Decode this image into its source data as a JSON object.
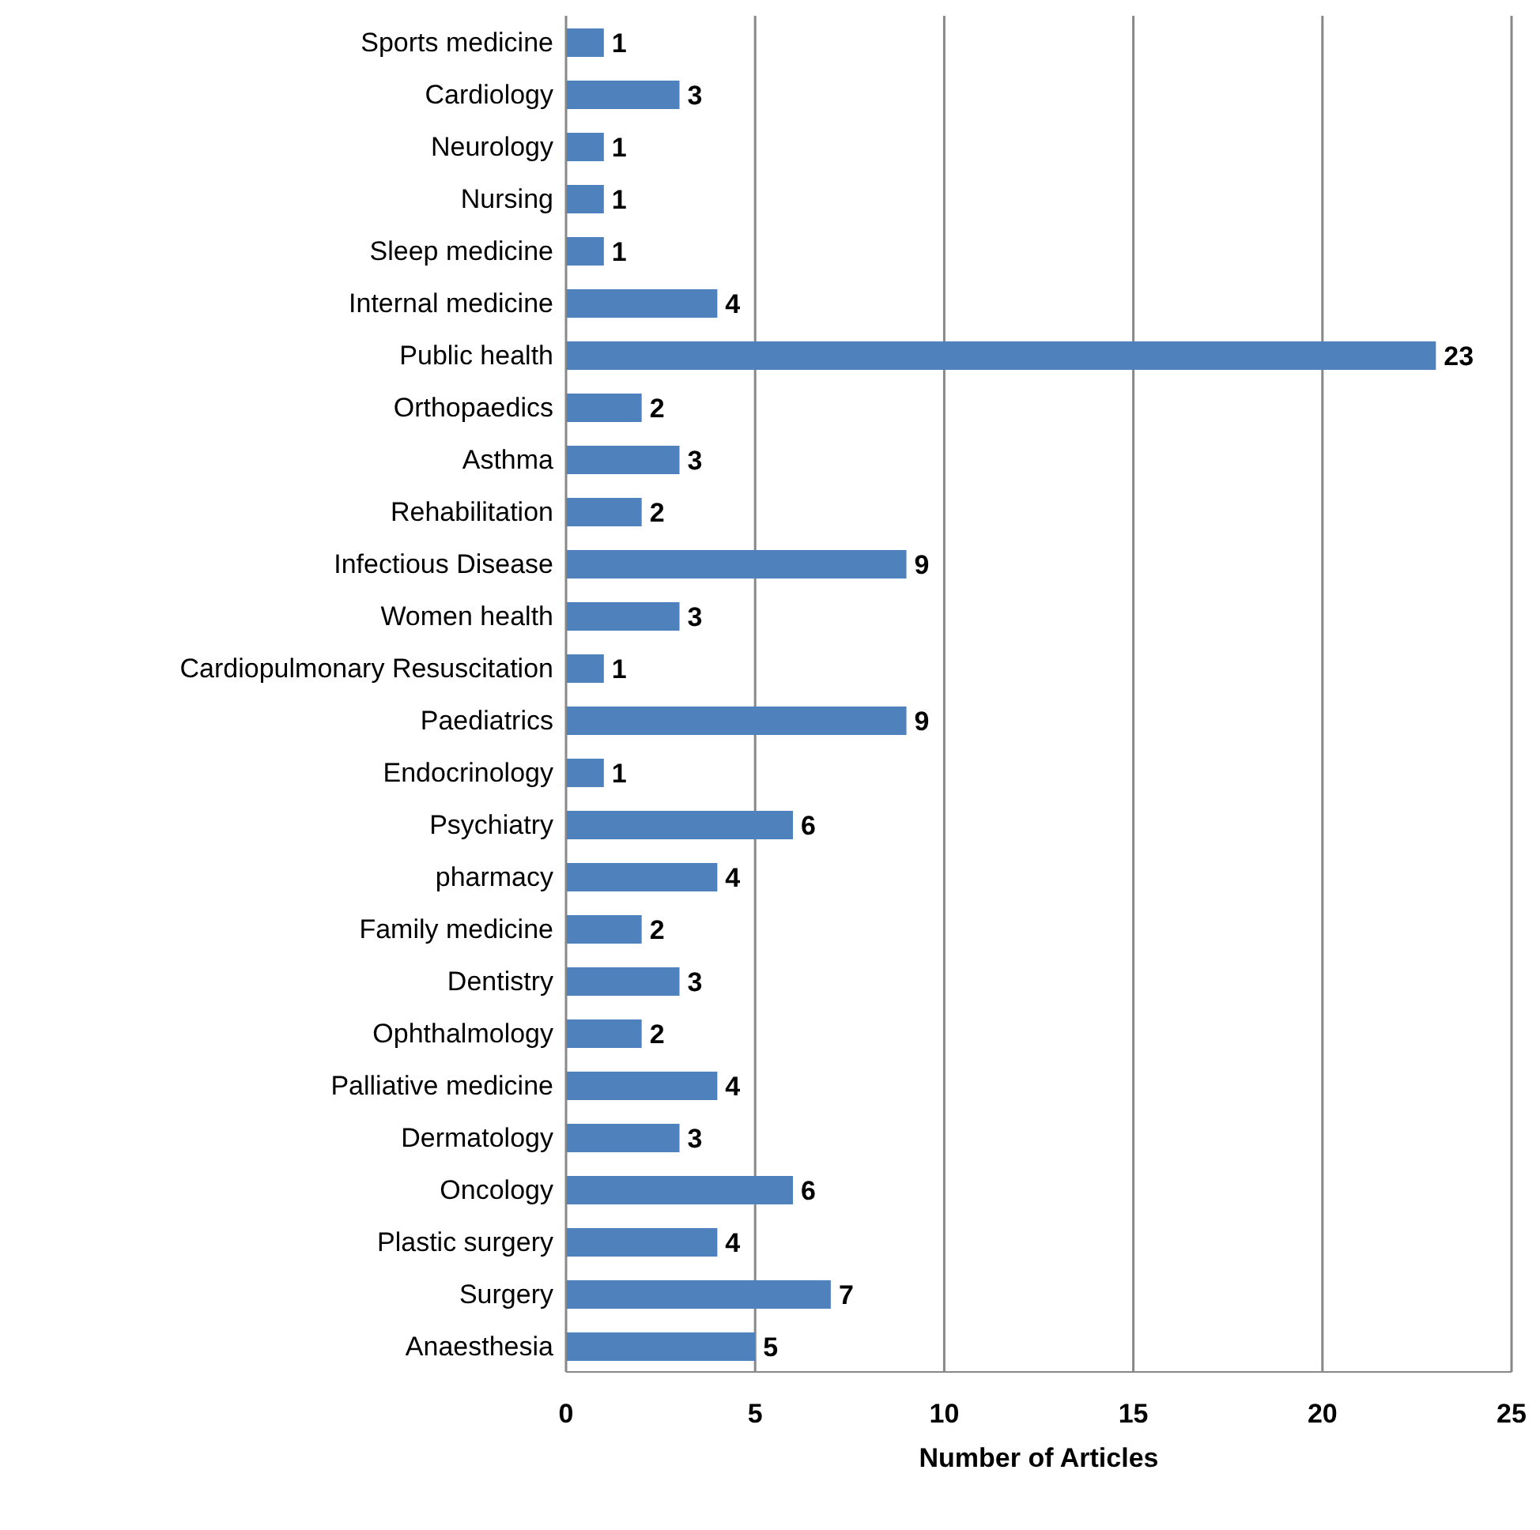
{
  "chart_data": {
    "type": "bar",
    "orientation": "horizontal",
    "xlabel": "Number of Articles",
    "categories": [
      "Sports medicine",
      "Cardiology",
      "Neurology",
      "Nursing",
      "Sleep medicine",
      "Internal medicine",
      "Public health",
      "Orthopaedics",
      "Asthma",
      "Rehabilitation",
      "Infectious Disease",
      "Women health",
      "Cardiopulmonary Resuscitation",
      "Paediatrics",
      "Endocrinology",
      "Psychiatry",
      "pharmacy",
      "Family medicine",
      "Dentistry",
      "Ophthalmology",
      "Palliative medicine",
      "Dermatology",
      "Oncology",
      "Plastic surgery",
      "Surgery",
      "Anaesthesia"
    ],
    "values": [
      1,
      3,
      1,
      1,
      1,
      4,
      23,
      2,
      3,
      2,
      9,
      3,
      1,
      9,
      1,
      6,
      4,
      2,
      3,
      2,
      4,
      3,
      6,
      4,
      7,
      5
    ],
    "color": "#4f81bd",
    "xlim": [
      0,
      25
    ],
    "xticks": [
      0,
      5,
      10,
      15,
      20,
      25
    ],
    "grid": "x",
    "data_labels": true
  }
}
